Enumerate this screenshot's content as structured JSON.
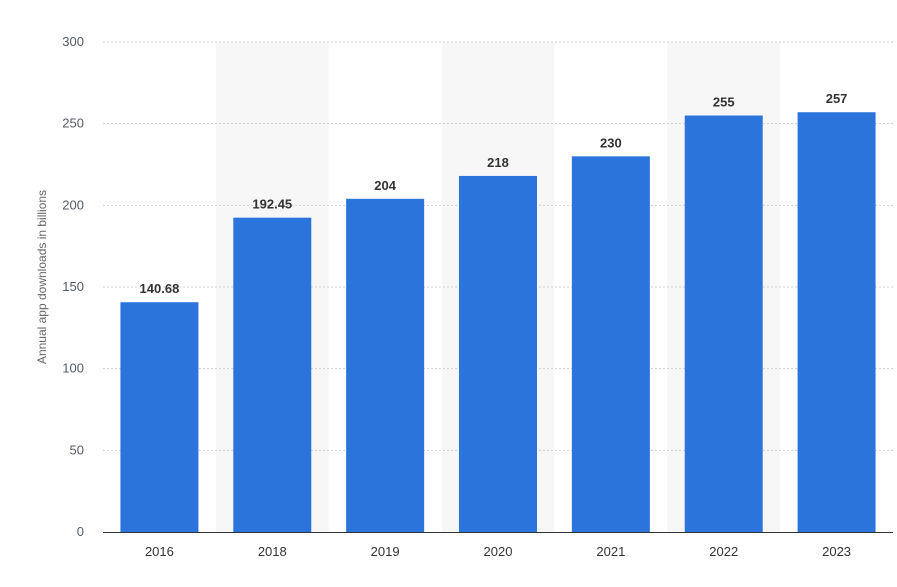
{
  "chart_data": {
    "type": "bar",
    "title": "",
    "xlabel": "",
    "ylabel": "Annual app downloads in billions",
    "categories": [
      "2016",
      "2018",
      "2019",
      "2020",
      "2021",
      "2022",
      "2023"
    ],
    "values": [
      140.68,
      192.45,
      204,
      218,
      230,
      255,
      257
    ],
    "value_labels": [
      "140.68",
      "192.45",
      "204",
      "218",
      "230",
      "255",
      "257"
    ],
    "ylim": [
      0,
      300
    ],
    "yticks": [
      0,
      50,
      100,
      150,
      200,
      250,
      300
    ],
    "grid": true,
    "legend": "none",
    "colors": {
      "bar": "#2a74dc",
      "band": "#f7f7f7",
      "grid": "#cfcfcf",
      "axis": "#333333"
    }
  }
}
